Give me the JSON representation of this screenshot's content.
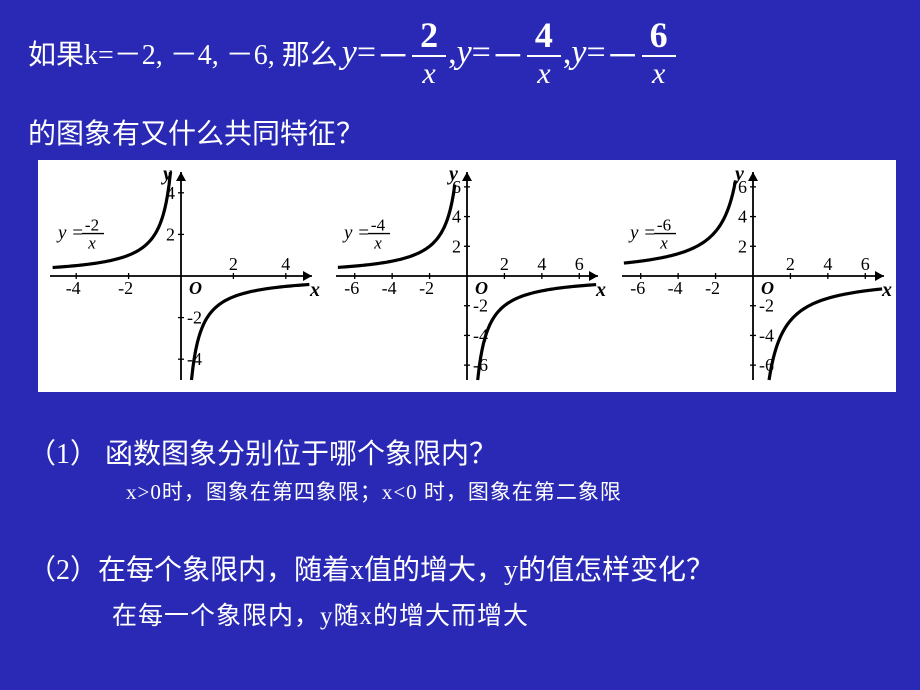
{
  "header": {
    "prefix": "如果k=－2,  －4, －6, 那么",
    "eq_lhs": "y",
    "eq_eq": " = ",
    "minus": "－",
    "frac1_num": "2",
    "frac1_den": "x",
    "comma": ", ",
    "frac2_num": "4",
    "frac2_den": "x",
    "frac3_num": "6",
    "frac3_den": "x"
  },
  "line2": "的图象有又什么共同特征？",
  "graphs": [
    {
      "eq_label": "y = -2 / x",
      "eq_num": "-2",
      "eq_den": "x",
      "xmin": -5,
      "xmax": 5,
      "ymin": -5,
      "ymax": 5,
      "xticks": [
        -4,
        -2,
        2,
        4
      ],
      "yticks": [
        -4,
        -2,
        2,
        4
      ],
      "k": -2
    },
    {
      "eq_label": "y = -4 / x",
      "eq_num": "-4",
      "eq_den": "x",
      "xmin": -7,
      "xmax": 7,
      "ymin": -7,
      "ymax": 7,
      "xticks": [
        -6,
        -4,
        -2,
        2,
        4,
        6
      ],
      "yticks": [
        -6,
        -4,
        -2,
        2,
        4,
        6
      ],
      "k": -4
    },
    {
      "eq_label": "y = -6 / x",
      "eq_num": "-6",
      "eq_den": "x",
      "xmin": -7,
      "xmax": 7,
      "ymin": -7,
      "ymax": 7,
      "xticks": [
        -6,
        -4,
        -2,
        2,
        4,
        6
      ],
      "yticks": [
        -6,
        -4,
        -2,
        2,
        4,
        6
      ],
      "k": -6
    }
  ],
  "q1": "（1） 函数图象分别位于哪个象限内？",
  "a1": "x>0时，图象在第四象限；x<0  时，图象在第二象限",
  "q2": "（2）在每个象限内，随着x值的增大，y的值怎样变化？",
  "a2": "在每一个象限内，y随x的增大而增大",
  "style": {
    "bg": "#2929b5",
    "text": "#ffffff",
    "graph_bg": "#ffffff",
    "curve_color": "#000000",
    "curve_width": 3.2,
    "axis_color": "#000000",
    "tick_font": 18,
    "label_font": 20
  }
}
